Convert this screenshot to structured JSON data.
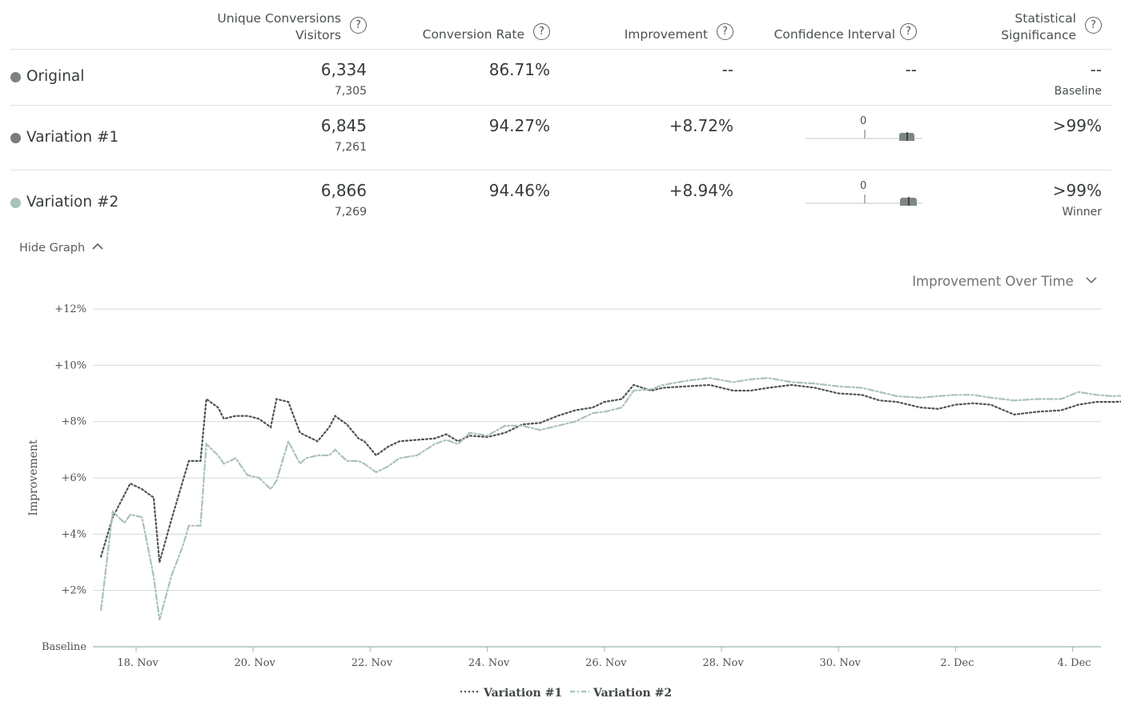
{
  "header": {
    "col_conversions": "Unique Conversions",
    "col_visitors": "Visitors",
    "col_rate": "Conversion Rate",
    "col_improvement": "Improvement",
    "col_ci": "Confidence Interval",
    "col_sig_line1": "Statistical",
    "col_sig_line2": "Significance",
    "help_glyph": "?"
  },
  "rows": [
    {
      "name": "Original",
      "conversions": "6,334",
      "visitors": "7,305",
      "rate": "86.71%",
      "improvement": "--",
      "ci": "--",
      "significance": "--",
      "sig_note": "Baseline",
      "color": "#7d837f"
    },
    {
      "name": "Variation #1",
      "conversions": "6,845",
      "visitors": "7,261",
      "rate": "94.27%",
      "improvement": "+8.72%",
      "ci_zero_label": "0",
      "significance": ">99%",
      "sig_note": "",
      "color": "#777d79"
    },
    {
      "name": "Variation #2",
      "conversions": "6,866",
      "visitors": "7,269",
      "rate": "94.46%",
      "improvement": "+8.94%",
      "ci_zero_label": "0",
      "significance": ">99%",
      "sig_note": "Winner",
      "color": "#a9c1bc"
    }
  ],
  "controls": {
    "hide_graph": "Hide Graph",
    "metric_select": "Improvement Over Time"
  },
  "chart_data": {
    "type": "line",
    "ylabel": "Improvement",
    "y_tick_labels": [
      "Baseline",
      "+2%",
      "+4%",
      "+6%",
      "+8%",
      "+10%",
      "+12%"
    ],
    "ylim": [
      0,
      12
    ],
    "x_tick_labels": [
      "18. Nov",
      "20. Nov",
      "22. Nov",
      "24. Nov",
      "26. Nov",
      "28. Nov",
      "30. Nov",
      "2. Dec",
      "4. Dec"
    ],
    "grid": true,
    "legend_position": "bottom-center",
    "series": [
      {
        "name": "Variation #1",
        "color": "#4c5350",
        "style": "dotted",
        "points": [
          [
            "17.4. Nov",
            3.2
          ],
          [
            "17.6. Nov",
            4.6
          ],
          [
            "17.8. Nov",
            5.4
          ],
          [
            "17.9. Nov",
            5.8
          ],
          [
            "18.1. Nov",
            5.6
          ],
          [
            "18.3. Nov",
            5.3
          ],
          [
            "18.4. Nov",
            3.0
          ],
          [
            "18.6. Nov",
            4.5
          ],
          [
            "18.8. Nov",
            5.9
          ],
          [
            "18.9. Nov",
            6.6
          ],
          [
            "19.1. Nov",
            6.6
          ],
          [
            "19.2. Nov",
            8.8
          ],
          [
            "19.4. Nov",
            8.5
          ],
          [
            "19.5. Nov",
            8.1
          ],
          [
            "19.7. Nov",
            8.2
          ],
          [
            "19.9. Nov",
            8.2
          ],
          [
            "20.1. Nov",
            8.1
          ],
          [
            "20.3. Nov",
            7.8
          ],
          [
            "20.4. Nov",
            8.8
          ],
          [
            "20.6. Nov",
            8.7
          ],
          [
            "20.8. Nov",
            7.6
          ],
          [
            "20.9. Nov",
            7.5
          ],
          [
            "21.1. Nov",
            7.3
          ],
          [
            "21.3. Nov",
            7.8
          ],
          [
            "21.4. Nov",
            8.2
          ],
          [
            "21.6. Nov",
            7.9
          ],
          [
            "21.8. Nov",
            7.4
          ],
          [
            "21.9. Nov",
            7.3
          ],
          [
            "22.1. Nov",
            6.8
          ],
          [
            "22.3. Nov",
            7.1
          ],
          [
            "22.5. Nov",
            7.3
          ],
          [
            "22.8. Nov",
            7.35
          ],
          [
            "23.1. Nov",
            7.4
          ],
          [
            "23.3. Nov",
            7.55
          ],
          [
            "23.5. Nov",
            7.3
          ],
          [
            "23.7. Nov",
            7.5
          ],
          [
            "24.0. Nov",
            7.45
          ],
          [
            "24.3. Nov",
            7.6
          ],
          [
            "24.6. Nov",
            7.9
          ],
          [
            "24.9. Nov",
            7.95
          ],
          [
            "25.2. Nov",
            8.2
          ],
          [
            "25.5. Nov",
            8.4
          ],
          [
            "25.8. Nov",
            8.5
          ],
          [
            "26.0. Nov",
            8.7
          ],
          [
            "26.3. Nov",
            8.8
          ],
          [
            "26.5. Nov",
            9.3
          ],
          [
            "26.8. Nov",
            9.1
          ],
          [
            "27.0. Nov",
            9.2
          ],
          [
            "27.4. Nov",
            9.25
          ],
          [
            "27.8. Nov",
            9.3
          ],
          [
            "28.2. Nov",
            9.1
          ],
          [
            "28.5. Nov",
            9.1
          ],
          [
            "28.8. Nov",
            9.2
          ],
          [
            "29.2. Nov",
            9.3
          ],
          [
            "29.6. Nov",
            9.2
          ],
          [
            "30.0. Nov",
            9.0
          ],
          [
            "30.4. Nov",
            8.95
          ],
          [
            "30.7. Nov",
            8.75
          ],
          [
            "31.0. Nov",
            8.7
          ],
          [
            "31.4. Nov",
            8.5
          ],
          [
            "31.7. Nov",
            8.45
          ],
          [
            "32.0. Nov",
            8.6
          ],
          [
            "32.3. Nov",
            8.65
          ],
          [
            "32.6. Nov",
            8.6
          ],
          [
            "33.0. Nov",
            8.25
          ],
          [
            "33.4. Nov",
            8.35
          ],
          [
            "33.8. Nov",
            8.4
          ],
          [
            "34.1. Nov",
            8.6
          ],
          [
            "34.4. Nov",
            8.7
          ],
          [
            "34.7. Nov",
            8.7
          ],
          [
            "35.0. Nov",
            8.72
          ]
        ]
      },
      {
        "name": "Variation #2",
        "color": "#a9c1bc",
        "style": "dash-dot",
        "points": [
          [
            "17.4. Nov",
            1.3
          ],
          [
            "17.6. Nov",
            4.8
          ],
          [
            "17.8. Nov",
            4.4
          ],
          [
            "17.9. Nov",
            4.7
          ],
          [
            "18.1. Nov",
            4.6
          ],
          [
            "18.3. Nov",
            2.5
          ],
          [
            "18.4. Nov",
            0.95
          ],
          [
            "18.6. Nov",
            2.5
          ],
          [
            "18.8. Nov",
            3.6
          ],
          [
            "18.9. Nov",
            4.3
          ],
          [
            "19.1. Nov",
            4.3
          ],
          [
            "19.2. Nov",
            7.2
          ],
          [
            "19.4. Nov",
            6.8
          ],
          [
            "19.5. Nov",
            6.5
          ],
          [
            "19.7. Nov",
            6.7
          ],
          [
            "19.9. Nov",
            6.1
          ],
          [
            "20.1. Nov",
            6.0
          ],
          [
            "20.3. Nov",
            5.6
          ],
          [
            "20.4. Nov",
            5.9
          ],
          [
            "20.6. Nov",
            7.3
          ],
          [
            "20.8. Nov",
            6.5
          ],
          [
            "20.9. Nov",
            6.7
          ],
          [
            "21.1. Nov",
            6.8
          ],
          [
            "21.3. Nov",
            6.8
          ],
          [
            "21.4. Nov",
            7.0
          ],
          [
            "21.6. Nov",
            6.6
          ],
          [
            "21.8. Nov",
            6.6
          ],
          [
            "21.9. Nov",
            6.5
          ],
          [
            "22.1. Nov",
            6.2
          ],
          [
            "22.3. Nov",
            6.4
          ],
          [
            "22.5. Nov",
            6.7
          ],
          [
            "22.8. Nov",
            6.8
          ],
          [
            "23.1. Nov",
            7.2
          ],
          [
            "23.3. Nov",
            7.35
          ],
          [
            "23.5. Nov",
            7.2
          ],
          [
            "23.7. Nov",
            7.6
          ],
          [
            "24.0. Nov",
            7.5
          ],
          [
            "24.3. Nov",
            7.85
          ],
          [
            "24.6. Nov",
            7.85
          ],
          [
            "24.9. Nov",
            7.7
          ],
          [
            "25.2. Nov",
            7.85
          ],
          [
            "25.5. Nov",
            8.0
          ],
          [
            "25.8. Nov",
            8.3
          ],
          [
            "26.0. Nov",
            8.35
          ],
          [
            "26.3. Nov",
            8.5
          ],
          [
            "26.5. Nov",
            9.1
          ],
          [
            "26.8. Nov",
            9.15
          ],
          [
            "27.0. Nov",
            9.3
          ],
          [
            "27.4. Nov",
            9.45
          ],
          [
            "27.8. Nov",
            9.55
          ],
          [
            "28.2. Nov",
            9.4
          ],
          [
            "28.5. Nov",
            9.5
          ],
          [
            "28.8. Nov",
            9.55
          ],
          [
            "29.2. Nov",
            9.4
          ],
          [
            "29.6. Nov",
            9.35
          ],
          [
            "30.0. Nov",
            9.25
          ],
          [
            "30.4. Nov",
            9.2
          ],
          [
            "30.7. Nov",
            9.05
          ],
          [
            "31.0. Nov",
            8.9
          ],
          [
            "31.4. Nov",
            8.85
          ],
          [
            "31.7. Nov",
            8.9
          ],
          [
            "32.0. Nov",
            8.95
          ],
          [
            "32.3. Nov",
            8.95
          ],
          [
            "32.6. Nov",
            8.85
          ],
          [
            "33.0. Nov",
            8.75
          ],
          [
            "33.4. Nov",
            8.8
          ],
          [
            "33.8. Nov",
            8.8
          ],
          [
            "34.1. Nov",
            9.05
          ],
          [
            "34.4. Nov",
            8.95
          ],
          [
            "34.7. Nov",
            8.9
          ],
          [
            "35.0. Nov",
            8.94
          ]
        ]
      }
    ]
  }
}
